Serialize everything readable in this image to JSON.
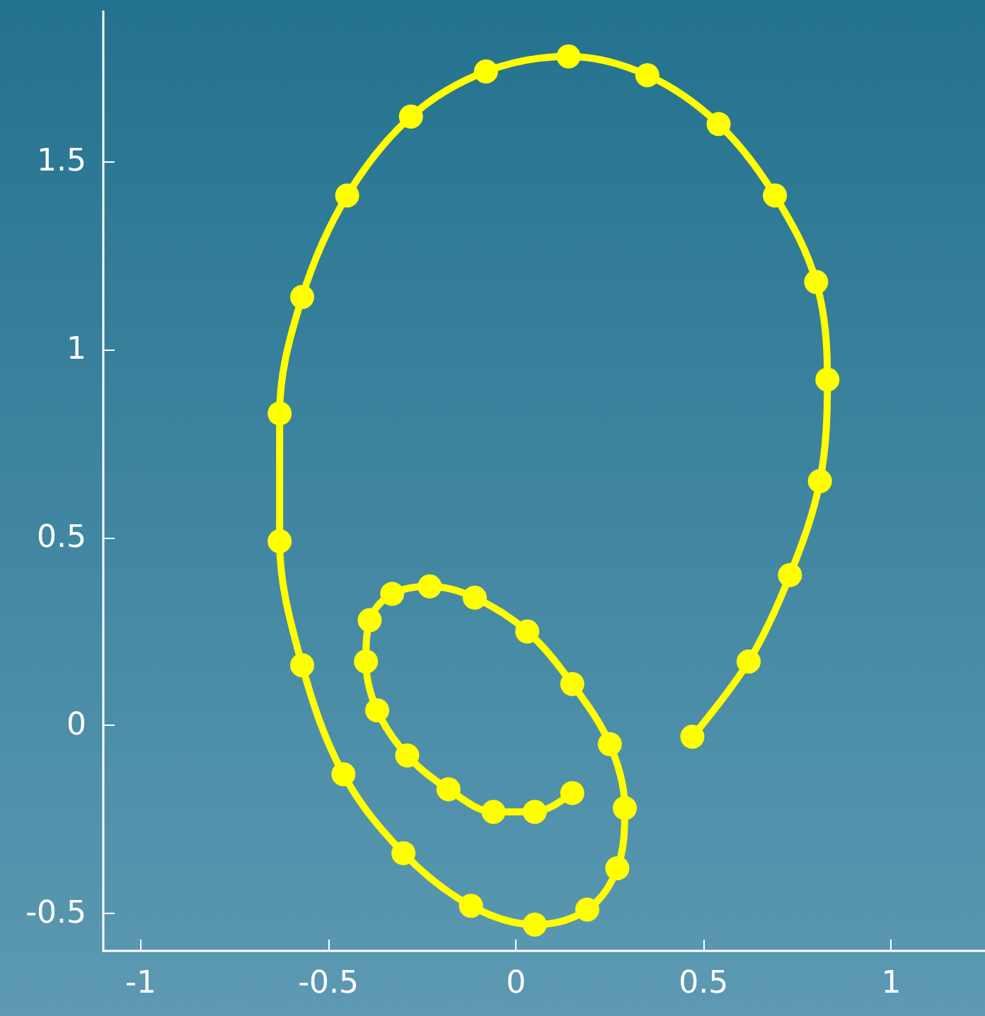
{
  "chart_data": {
    "type": "line",
    "marker": "circle",
    "line_style": "solid",
    "grid": false,
    "xlim": [
      -1.1,
      1.25
    ],
    "ylim": [
      -0.6,
      1.9
    ],
    "xticks": [
      -1,
      -0.5,
      0,
      0.5,
      1
    ],
    "yticks": [
      -0.5,
      0,
      0.5,
      1,
      1.5
    ],
    "series": [
      {
        "color": "#ffff00",
        "x": [
          0.15,
          0.05,
          -0.06,
          -0.18,
          -0.29,
          -0.37,
          -0.4,
          -0.39,
          -0.33,
          -0.23,
          -0.11,
          0.03,
          0.15,
          0.25,
          0.29,
          0.27,
          0.19,
          0.05,
          -0.12,
          -0.3,
          -0.46,
          -0.57,
          -0.63,
          -0.63,
          -0.57,
          -0.45,
          -0.28,
          -0.08,
          0.14,
          0.35,
          0.54,
          0.69,
          0.8,
          0.83,
          0.81,
          0.73,
          0.62,
          0.47
        ],
        "values": [
          -0.18,
          -0.23,
          -0.23,
          -0.17,
          -0.08,
          0.04,
          0.17,
          0.28,
          0.35,
          0.37,
          0.34,
          0.25,
          0.11,
          -0.05,
          -0.22,
          -0.38,
          -0.49,
          -0.53,
          -0.48,
          -0.34,
          -0.13,
          0.16,
          0.49,
          0.83,
          1.14,
          1.41,
          1.62,
          1.74,
          1.78,
          1.73,
          1.6,
          1.41,
          1.18,
          0.92,
          0.65,
          0.4,
          0.17,
          -0.03
        ]
      }
    ]
  }
}
